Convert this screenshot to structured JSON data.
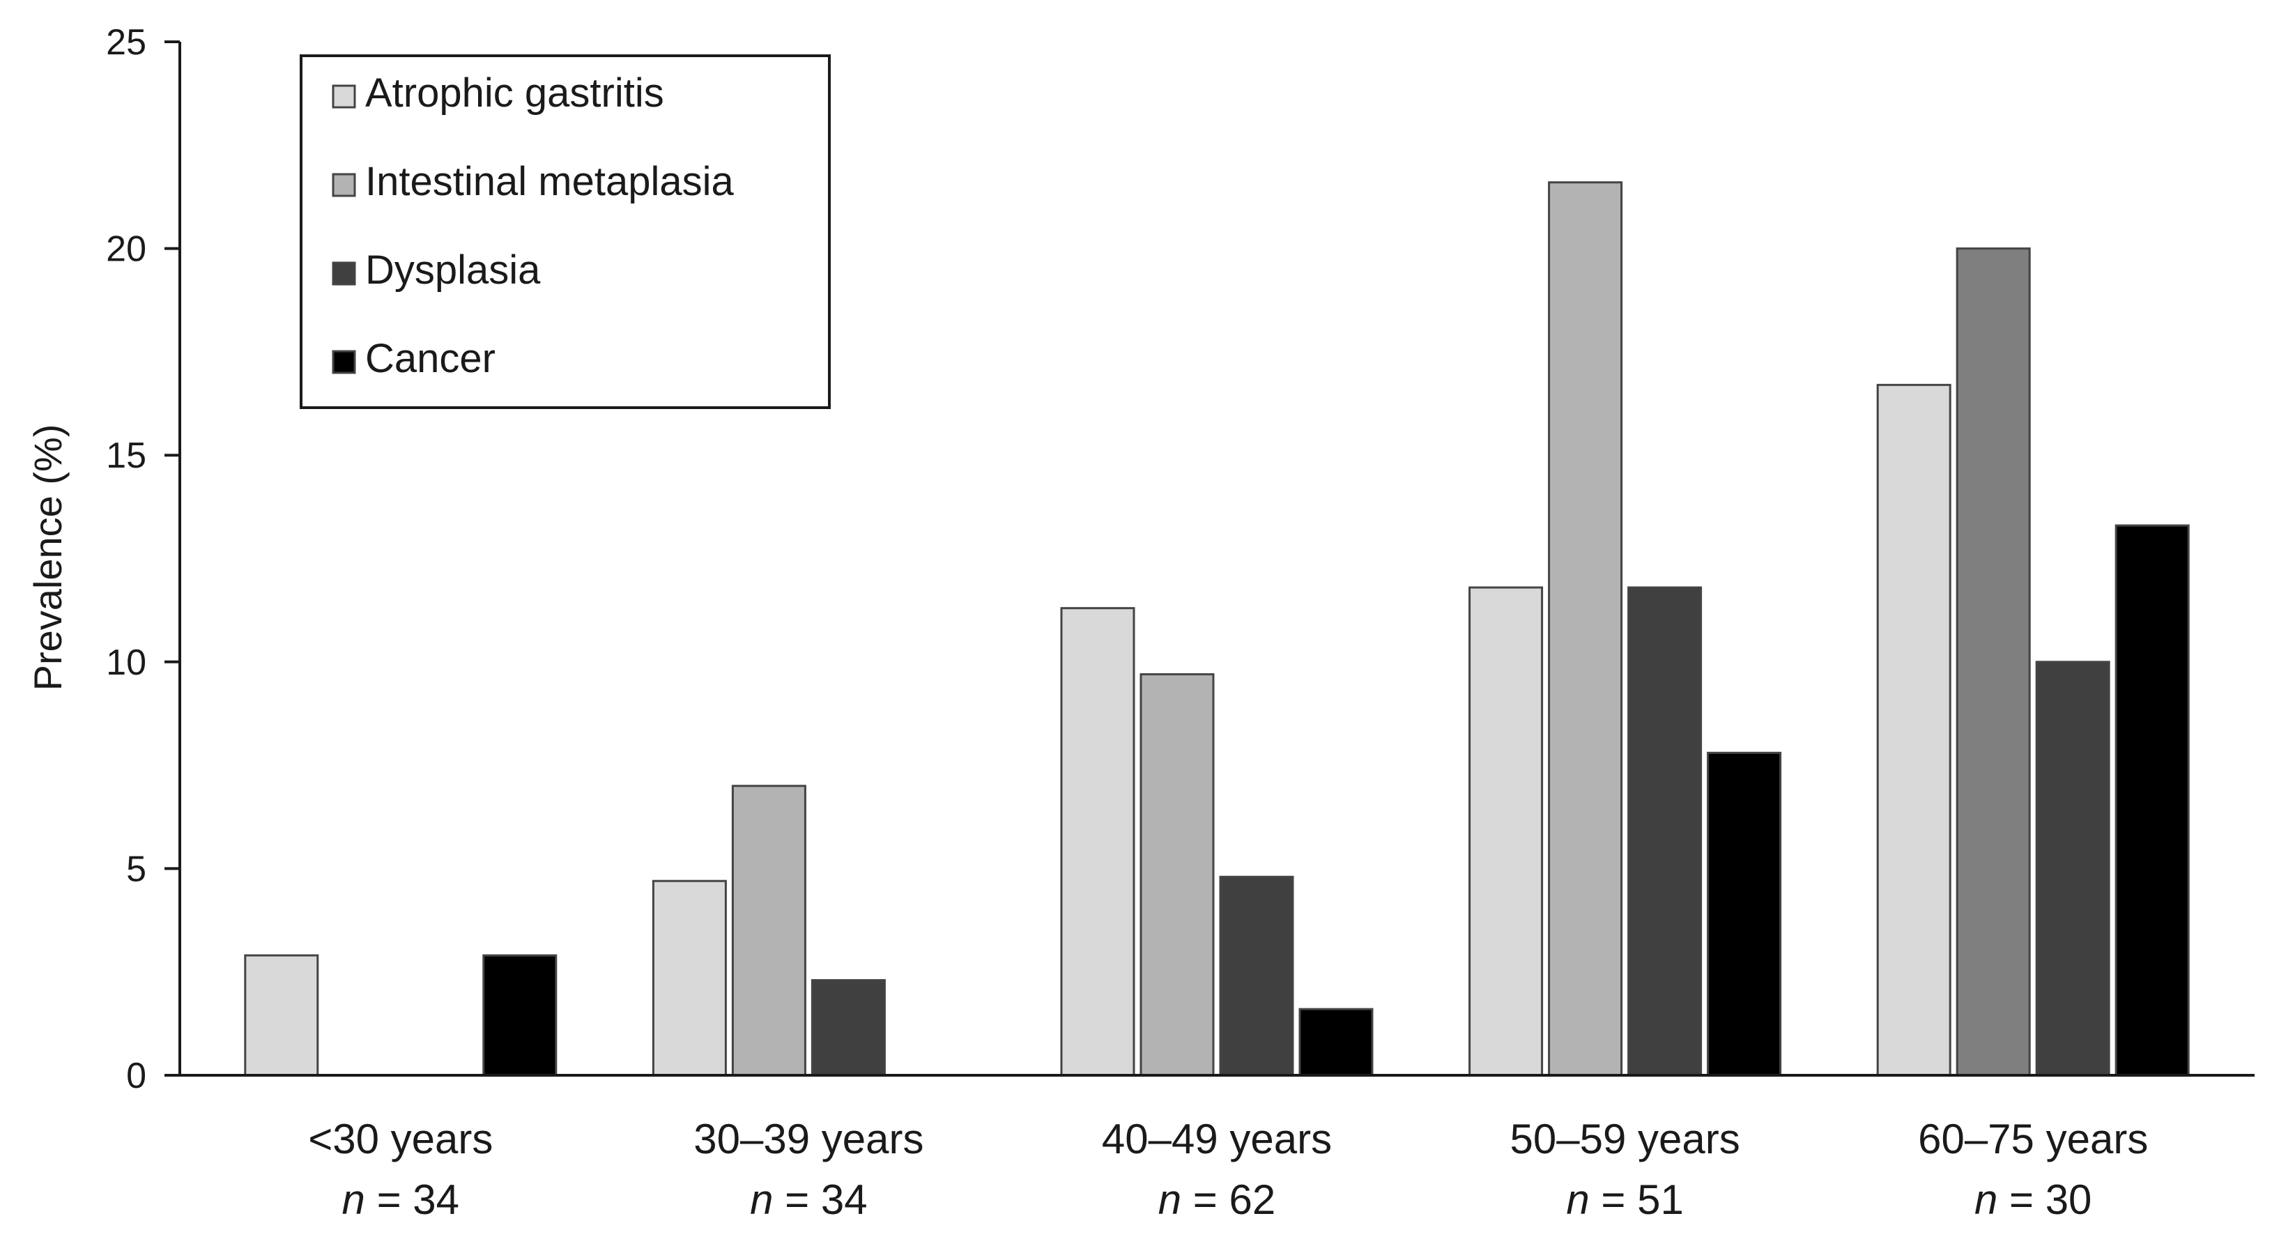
{
  "chart_data": {
    "type": "bar",
    "title": "",
    "xlabel": "",
    "ylabel": "Prevalence (%)",
    "ylim": [
      0,
      25
    ],
    "yticks": [
      0,
      5,
      10,
      15,
      20,
      25
    ],
    "categories": [
      "<30 years",
      "30–39 years",
      "40–49 years",
      "50–59 years",
      "60–75 years"
    ],
    "category_n": [
      "34",
      "34",
      "62",
      "51",
      "30"
    ],
    "n_label": "n",
    "series": [
      {
        "name": "Atrophic gastritis",
        "values": [
          2.9,
          4.7,
          11.3,
          11.8,
          16.7
        ],
        "color": "#d9d9d9"
      },
      {
        "name": "Intestinal metaplasia",
        "values": [
          0,
          7.0,
          9.7,
          21.6,
          20.0
        ],
        "color": "#b3b3b3",
        "last_color": "#7f7f7f"
      },
      {
        "name": "Dysplasia",
        "values": [
          0,
          2.3,
          4.8,
          11.8,
          10.0
        ],
        "color": "#404040"
      },
      {
        "name": "Cancer",
        "values": [
          2.9,
          0,
          1.6,
          7.8,
          13.3
        ],
        "color": "#000000"
      }
    ],
    "legend_position": "top-left",
    "grid": false
  }
}
